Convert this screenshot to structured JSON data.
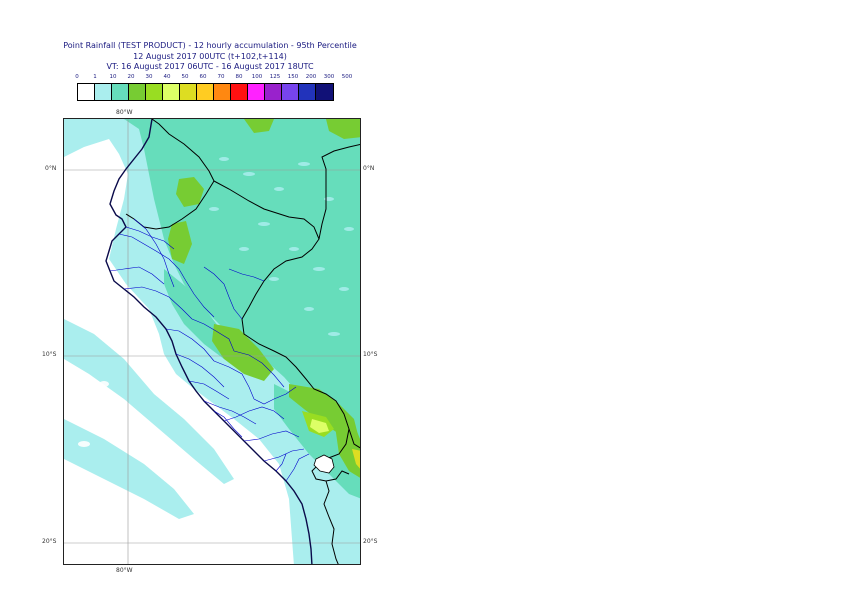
{
  "title": {
    "line1": "Point Rainfall (TEST PRODUCT) - 12 hourly accumulation - 95th Percentile",
    "line2": "12 August 2017 00UTC (t+102,t+114)",
    "line3": "VT: 16 August 2017 06UTC - 16 August 2017 18UTC"
  },
  "legend": {
    "thresholds": [
      "0",
      "1",
      "10",
      "20",
      "30",
      "40",
      "50",
      "60",
      "70",
      "80",
      "100",
      "125",
      "150",
      "200",
      "300",
      "500"
    ],
    "colors": [
      "#ffffff",
      "#aaeeee",
      "#66ddbb",
      "#77cc33",
      "#99dd22",
      "#ddff66",
      "#dddd22",
      "#ffcc22",
      "#ff8811",
      "#ff1111",
      "#ff22ff",
      "#9922cc",
      "#7744ee",
      "#2233bb",
      "#111177"
    ]
  },
  "map": {
    "lon_top": "80°W",
    "lon_bottom": "80°W",
    "lat_labels_left": [
      "0°N",
      "10°S",
      "20°S"
    ],
    "lat_labels_right": [
      "0°N",
      "10°S",
      "20°S"
    ]
  }
}
